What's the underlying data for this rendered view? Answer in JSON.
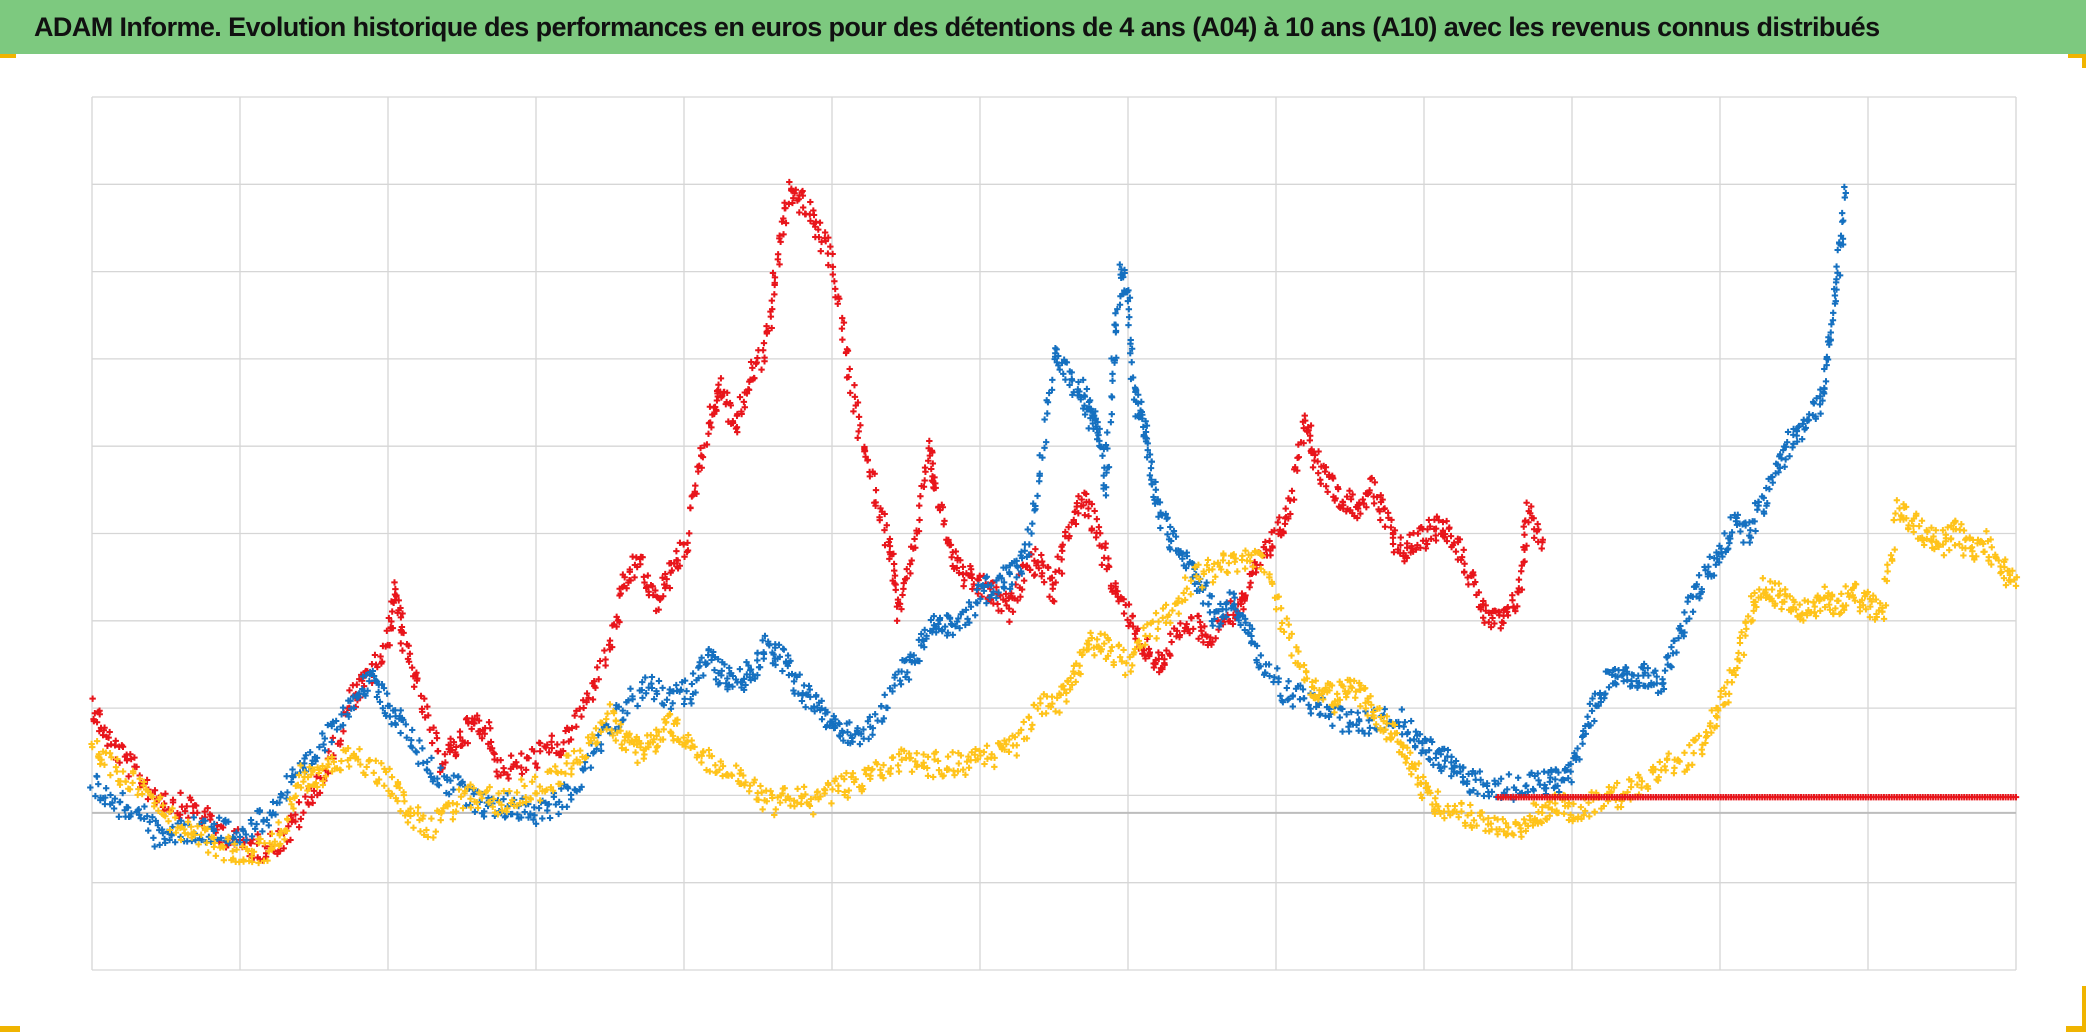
{
  "title": "ADAM Informe. Evolution historique des performances en euros pour des détentions de 4 ans (A04) à 10 ans (A10) avec les revenus connus distribués",
  "colors": {
    "title_bar": "#7dc97f",
    "grid": "#d6d6d6",
    "zero_line": "#bdbdbd",
    "frame_marker": "#f0b400"
  },
  "chart_data": {
    "type": "scatter",
    "title": "ADAM Informe. Evolution historique des performances en euros pour des détentions de 4 ans (A04) à 10 ans (A10) avec les revenus connus distribués",
    "xlabel": "",
    "ylabel": "",
    "xlim": [
      0,
      13
    ],
    "ylim": [
      -1.8,
      8.2
    ],
    "x_gridlines": 13,
    "y_gridlines": 10,
    "zero_y": 0,
    "grid": true,
    "tick_labels_visible": false,
    "legend": "none",
    "marker": "plus",
    "series": [
      {
        "color": "#e8151b",
        "points": [
          [
            0.0,
            1.25
          ],
          [
            0.1,
            0.85
          ],
          [
            0.25,
            0.55
          ],
          [
            0.4,
            0.25
          ],
          [
            0.55,
            0.1
          ],
          [
            0.7,
            0.05
          ],
          [
            0.85,
            -0.2
          ],
          [
            1.0,
            -0.35
          ],
          [
            1.15,
            -0.4
          ],
          [
            1.3,
            -0.3
          ],
          [
            1.45,
            0.1
          ],
          [
            1.6,
            0.55
          ],
          [
            1.75,
            1.3
          ],
          [
            1.85,
            1.5
          ],
          [
            2.0,
            1.9
          ],
          [
            2.05,
            2.6
          ],
          [
            2.1,
            2.0
          ],
          [
            2.2,
            1.4
          ],
          [
            2.35,
            0.6
          ],
          [
            2.45,
            0.75
          ],
          [
            2.55,
            1.0
          ],
          [
            2.65,
            1.0
          ],
          [
            2.75,
            0.5
          ],
          [
            2.9,
            0.55
          ],
          [
            3.05,
            0.7
          ],
          [
            3.2,
            0.8
          ],
          [
            3.35,
            1.3
          ],
          [
            3.5,
            1.9
          ],
          [
            3.6,
            2.6
          ],
          [
            3.7,
            2.9
          ],
          [
            3.8,
            2.4
          ],
          [
            3.9,
            2.7
          ],
          [
            4.0,
            3.0
          ],
          [
            4.1,
            4.0
          ],
          [
            4.2,
            4.6
          ],
          [
            4.25,
            4.9
          ],
          [
            4.35,
            4.4
          ],
          [
            4.45,
            5.0
          ],
          [
            4.55,
            5.3
          ],
          [
            4.62,
            6.2
          ],
          [
            4.7,
            7.1
          ],
          [
            4.8,
            7.0
          ],
          [
            4.9,
            6.7
          ],
          [
            5.0,
            6.3
          ],
          [
            5.1,
            5.2
          ],
          [
            5.2,
            4.3
          ],
          [
            5.3,
            3.6
          ],
          [
            5.4,
            3.0
          ],
          [
            5.45,
            2.3
          ],
          [
            5.55,
            3.0
          ],
          [
            5.65,
            4.2
          ],
          [
            5.7,
            3.7
          ],
          [
            5.8,
            3.0
          ],
          [
            5.9,
            2.7
          ],
          [
            6.0,
            2.6
          ],
          [
            6.1,
            2.5
          ],
          [
            6.2,
            2.3
          ],
          [
            6.3,
            2.8
          ],
          [
            6.4,
            2.9
          ],
          [
            6.5,
            2.5
          ],
          [
            6.6,
            3.3
          ],
          [
            6.7,
            3.6
          ],
          [
            6.8,
            3.2
          ],
          [
            6.9,
            2.6
          ],
          [
            7.0,
            2.3
          ],
          [
            7.1,
            1.9
          ],
          [
            7.2,
            1.7
          ],
          [
            7.3,
            1.95
          ],
          [
            7.45,
            2.2
          ],
          [
            7.55,
            2.0
          ],
          [
            7.7,
            2.3
          ],
          [
            7.8,
            2.5
          ],
          [
            7.9,
            2.9
          ],
          [
            8.0,
            3.2
          ],
          [
            8.1,
            3.5
          ],
          [
            8.2,
            4.6
          ],
          [
            8.25,
            4.1
          ],
          [
            8.35,
            3.8
          ],
          [
            8.45,
            3.6
          ],
          [
            8.55,
            3.5
          ],
          [
            8.65,
            3.7
          ],
          [
            8.75,
            3.3
          ],
          [
            8.85,
            3.0
          ],
          [
            8.95,
            3.1
          ],
          [
            9.05,
            3.25
          ],
          [
            9.15,
            3.3
          ],
          [
            9.25,
            3.0
          ],
          [
            9.35,
            2.5
          ],
          [
            9.45,
            2.2
          ],
          [
            9.55,
            2.2
          ],
          [
            9.65,
            2.6
          ],
          [
            9.7,
            3.5
          ],
          [
            9.8,
            3.1
          ]
        ]
      },
      {
        "color": "#1570c0",
        "points": [
          [
            0.0,
            0.35
          ],
          [
            0.15,
            0.1
          ],
          [
            0.3,
            0.05
          ],
          [
            0.45,
            -0.3
          ],
          [
            0.6,
            -0.2
          ],
          [
            0.75,
            -0.2
          ],
          [
            0.9,
            -0.2
          ],
          [
            1.05,
            -0.2
          ],
          [
            1.2,
            0.0
          ],
          [
            1.35,
            0.35
          ],
          [
            1.5,
            0.6
          ],
          [
            1.65,
            1.05
          ],
          [
            1.8,
            1.4
          ],
          [
            1.9,
            1.5
          ],
          [
            2.0,
            1.2
          ],
          [
            2.1,
            1.0
          ],
          [
            2.25,
            0.6
          ],
          [
            2.4,
            0.35
          ],
          [
            2.55,
            0.2
          ],
          [
            2.7,
            0.05
          ],
          [
            2.85,
            0.1
          ],
          [
            3.0,
            0.0
          ],
          [
            3.15,
            0.1
          ],
          [
            3.3,
            0.4
          ],
          [
            3.45,
            0.9
          ],
          [
            3.6,
            1.2
          ],
          [
            3.75,
            1.5
          ],
          [
            3.9,
            1.3
          ],
          [
            4.05,
            1.4
          ],
          [
            4.15,
            1.8
          ],
          [
            4.25,
            1.6
          ],
          [
            4.35,
            1.5
          ],
          [
            4.45,
            1.6
          ],
          [
            4.55,
            1.9
          ],
          [
            4.65,
            1.8
          ],
          [
            4.75,
            1.5
          ],
          [
            4.85,
            1.3
          ],
          [
            4.95,
            1.1
          ],
          [
            5.05,
            1.0
          ],
          [
            5.15,
            0.9
          ],
          [
            5.3,
            1.0
          ],
          [
            5.45,
            1.6
          ],
          [
            5.55,
            1.7
          ],
          [
            5.65,
            2.1
          ],
          [
            5.75,
            2.2
          ],
          [
            5.85,
            2.1
          ],
          [
            6.0,
            2.5
          ],
          [
            6.1,
            2.6
          ],
          [
            6.2,
            2.7
          ],
          [
            6.3,
            2.9
          ],
          [
            6.4,
            3.8
          ],
          [
            6.5,
            5.3
          ],
          [
            6.6,
            5.0
          ],
          [
            6.7,
            4.8
          ],
          [
            6.75,
            4.5
          ],
          [
            6.8,
            4.4
          ],
          [
            6.85,
            3.7
          ],
          [
            6.9,
            5.2
          ],
          [
            6.95,
            6.2
          ],
          [
            7.0,
            5.8
          ],
          [
            7.05,
            4.7
          ],
          [
            7.1,
            4.5
          ],
          [
            7.15,
            4.0
          ],
          [
            7.2,
            3.5
          ],
          [
            7.3,
            3.1
          ],
          [
            7.4,
            2.9
          ],
          [
            7.5,
            2.6
          ],
          [
            7.6,
            2.2
          ],
          [
            7.7,
            2.4
          ],
          [
            7.8,
            2.2
          ],
          [
            7.9,
            1.7
          ],
          [
            8.05,
            1.4
          ],
          [
            8.2,
            1.3
          ],
          [
            8.35,
            1.15
          ],
          [
            8.5,
            1.0
          ],
          [
            8.65,
            1.05
          ],
          [
            8.8,
            1.1
          ],
          [
            8.95,
            0.9
          ],
          [
            9.05,
            0.7
          ],
          [
            9.15,
            0.6
          ],
          [
            9.25,
            0.4
          ],
          [
            9.35,
            0.35
          ],
          [
            9.5,
            0.3
          ],
          [
            9.65,
            0.3
          ],
          [
            9.8,
            0.35
          ],
          [
            9.9,
            0.35
          ],
          [
            10.0,
            0.5
          ],
          [
            10.1,
            1.0
          ],
          [
            10.2,
            1.4
          ],
          [
            10.3,
            1.6
          ],
          [
            10.4,
            1.5
          ],
          [
            10.5,
            1.6
          ],
          [
            10.6,
            1.5
          ],
          [
            10.7,
            1.9
          ],
          [
            10.8,
            2.4
          ],
          [
            10.9,
            2.7
          ],
          [
            11.0,
            3.0
          ],
          [
            11.1,
            3.3
          ],
          [
            11.2,
            3.2
          ],
          [
            11.3,
            3.6
          ],
          [
            11.4,
            4.0
          ],
          [
            11.5,
            4.3
          ],
          [
            11.6,
            4.5
          ],
          [
            11.7,
            4.8
          ],
          [
            11.75,
            5.5
          ],
          [
            11.8,
            6.2
          ],
          [
            11.85,
            7.1
          ]
        ]
      },
      {
        "color": "#ffc31a",
        "points": [
          [
            0.0,
            0.75
          ],
          [
            0.15,
            0.5
          ],
          [
            0.3,
            0.35
          ],
          [
            0.45,
            0.1
          ],
          [
            0.6,
            -0.2
          ],
          [
            0.75,
            -0.3
          ],
          [
            0.9,
            -0.4
          ],
          [
            1.05,
            -0.45
          ],
          [
            1.2,
            -0.4
          ],
          [
            1.3,
            -0.2
          ],
          [
            1.4,
            0.4
          ],
          [
            1.5,
            0.4
          ],
          [
            1.6,
            0.5
          ],
          [
            1.75,
            0.65
          ],
          [
            1.9,
            0.5
          ],
          [
            2.05,
            0.3
          ],
          [
            2.15,
            -0.05
          ],
          [
            2.3,
            -0.15
          ],
          [
            2.45,
            0.1
          ],
          [
            2.6,
            0.2
          ],
          [
            2.75,
            0.1
          ],
          [
            2.9,
            0.25
          ],
          [
            3.05,
            0.3
          ],
          [
            3.2,
            0.5
          ],
          [
            3.35,
            0.8
          ],
          [
            3.5,
            1.1
          ],
          [
            3.6,
            0.8
          ],
          [
            3.7,
            0.7
          ],
          [
            3.8,
            0.85
          ],
          [
            3.9,
            1.0
          ],
          [
            4.0,
            0.9
          ],
          [
            4.15,
            0.6
          ],
          [
            4.3,
            0.5
          ],
          [
            4.45,
            0.3
          ],
          [
            4.6,
            0.1
          ],
          [
            4.75,
            0.2
          ],
          [
            4.9,
            0.1
          ],
          [
            5.05,
            0.3
          ],
          [
            5.2,
            0.35
          ],
          [
            5.35,
            0.5
          ],
          [
            5.5,
            0.6
          ],
          [
            5.65,
            0.55
          ],
          [
            5.8,
            0.55
          ],
          [
            5.95,
            0.6
          ],
          [
            6.1,
            0.65
          ],
          [
            6.25,
            0.8
          ],
          [
            6.4,
            1.2
          ],
          [
            6.55,
            1.3
          ],
          [
            6.65,
            1.6
          ],
          [
            6.75,
            1.95
          ],
          [
            6.85,
            1.9
          ],
          [
            7.0,
            1.7
          ],
          [
            7.15,
            2.1
          ],
          [
            7.3,
            2.3
          ],
          [
            7.45,
            2.7
          ],
          [
            7.6,
            2.8
          ],
          [
            7.75,
            2.9
          ],
          [
            7.9,
            2.9
          ],
          [
            8.05,
            2.2
          ],
          [
            8.2,
            1.5
          ],
          [
            8.3,
            1.4
          ],
          [
            8.4,
            1.3
          ],
          [
            8.5,
            1.5
          ],
          [
            8.6,
            1.3
          ],
          [
            8.7,
            1.05
          ],
          [
            8.8,
            0.9
          ],
          [
            8.9,
            0.6
          ],
          [
            9.0,
            0.3
          ],
          [
            9.1,
            0.1
          ],
          [
            9.25,
            0.0
          ],
          [
            9.4,
            -0.1
          ],
          [
            9.55,
            -0.2
          ],
          [
            9.7,
            -0.1
          ],
          [
            9.8,
            0.05
          ],
          [
            9.9,
            0.1
          ],
          [
            10.0,
            0.05
          ],
          [
            10.15,
            0.1
          ],
          [
            10.3,
            0.2
          ],
          [
            10.45,
            0.3
          ],
          [
            10.6,
            0.5
          ],
          [
            10.75,
            0.6
          ],
          [
            10.9,
            0.8
          ],
          [
            11.0,
            1.2
          ],
          [
            11.1,
            1.6
          ],
          [
            11.2,
            2.3
          ],
          [
            11.3,
            2.6
          ],
          [
            11.4,
            2.5
          ],
          [
            11.5,
            2.4
          ],
          [
            11.6,
            2.3
          ],
          [
            11.7,
            2.5
          ],
          [
            11.8,
            2.4
          ],
          [
            11.9,
            2.5
          ],
          [
            12.0,
            2.4
          ],
          [
            12.1,
            2.3
          ],
          [
            12.2,
            3.5
          ],
          [
            12.3,
            3.3
          ],
          [
            12.4,
            3.2
          ],
          [
            12.5,
            3.1
          ],
          [
            12.6,
            3.2
          ],
          [
            12.7,
            3.0
          ],
          [
            12.8,
            3.1
          ],
          [
            12.9,
            2.8
          ],
          [
            13.0,
            2.6
          ]
        ]
      },
      {
        "color": "#e8151b",
        "points": [
          [
            9.5,
            0.18
          ],
          [
            13.0,
            0.18
          ]
        ]
      }
    ]
  }
}
